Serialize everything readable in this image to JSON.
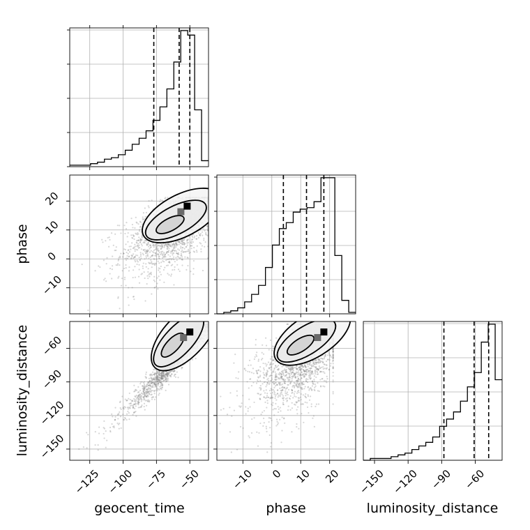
{
  "chart_data": {
    "type": "corner",
    "parameters": [
      {
        "name": "geocent_time",
        "range": [
          -140,
          -36
        ],
        "ticks": [
          -125,
          -100,
          -75,
          -50
        ],
        "tick_labels": [
          "−125",
          "−100",
          "−75",
          "−50"
        ],
        "quantiles": [
          -77,
          -58,
          -50
        ],
        "hist_bins": [
          -140,
          -134.8,
          -129.6,
          -124.4,
          -119.2,
          -114,
          -108.8,
          -103.6,
          -98.4,
          -93.2,
          -88,
          -82.8,
          -77.6,
          -72.4,
          -67.2,
          -62,
          -56.8,
          -51.6,
          -46.4,
          -41.2,
          -36
        ],
        "hist_counts": [
          0.01,
          0.01,
          0.01,
          0.02,
          0.03,
          0.05,
          0.06,
          0.08,
          0.11,
          0.15,
          0.19,
          0.24,
          0.31,
          0.4,
          0.52,
          0.7,
          0.91,
          0.88,
          0.38,
          0.04
        ]
      },
      {
        "name": "phase",
        "range": [
          -19,
          29
        ],
        "ticks": [
          -10,
          0,
          10,
          20
        ],
        "tick_labels": [
          "−10",
          "0",
          "10",
          "20"
        ],
        "quantiles": [
          4,
          12,
          18
        ],
        "hist_bins": [
          -19,
          -16.6,
          -14.2,
          -11.8,
          -9.4,
          -7,
          -4.6,
          -2.2,
          0.2,
          2.6,
          5,
          7.4,
          9.8,
          12.2,
          14.6,
          17,
          19.4,
          21.8,
          24.2,
          26.6,
          29
        ],
        "hist_counts": [
          0.0,
          0.01,
          0.02,
          0.04,
          0.08,
          0.13,
          0.19,
          0.31,
          0.46,
          0.57,
          0.61,
          0.68,
          0.7,
          0.71,
          0.75,
          0.91,
          0.91,
          0.39,
          0.09,
          0.01
        ]
      },
      {
        "name": "luminosity_distance",
        "range": [
          -160,
          -36
        ],
        "ticks": [
          -150,
          -120,
          -90,
          -60
        ],
        "tick_labels": [
          "−150",
          "−120",
          "−90",
          "−60"
        ],
        "quantiles": [
          -88,
          -61,
          -48
        ],
        "hist_bins": [
          -160,
          -153.8,
          -147.6,
          -141.4,
          -135.2,
          -129,
          -122.8,
          -116.6,
          -110.4,
          -104.2,
          -98,
          -91.8,
          -85.6,
          -79.4,
          -73.2,
          -67,
          -60.8,
          -54.6,
          -48.4,
          -42.2,
          -36
        ],
        "hist_counts": [
          0.0,
          0.01,
          0.01,
          0.01,
          0.02,
          0.03,
          0.04,
          0.06,
          0.08,
          0.1,
          0.13,
          0.19,
          0.23,
          0.27,
          0.33,
          0.41,
          0.49,
          0.66,
          0.76,
          0.45
        ]
      }
    ],
    "panels_2d": [
      {
        "x": "geocent_time",
        "y": "phase",
        "correlation": 0.55,
        "x_mean": -62,
        "x_sd": 16,
        "y_mean": 10,
        "y_sd": 7,
        "contour_levels": [
          0.39,
          0.86,
          0.99
        ],
        "peak": [
          -52,
          18
        ]
      },
      {
        "x": "geocent_time",
        "y": "luminosity_distance",
        "correlation": 0.97,
        "x_mean": -62,
        "x_sd": 16,
        "y_mean": -72,
        "y_sd": 21,
        "contour_levels": [
          0.39,
          0.86,
          0.99
        ],
        "peak": [
          -50,
          -46
        ]
      },
      {
        "x": "phase",
        "y": "luminosity_distance",
        "correlation": 0.55,
        "x_mean": 10,
        "x_sd": 7,
        "y_mean": -72,
        "y_sd": 21,
        "contour_levels": [
          0.39,
          0.86,
          0.99
        ],
        "peak": [
          18,
          -46
        ]
      }
    ],
    "grid": true
  }
}
